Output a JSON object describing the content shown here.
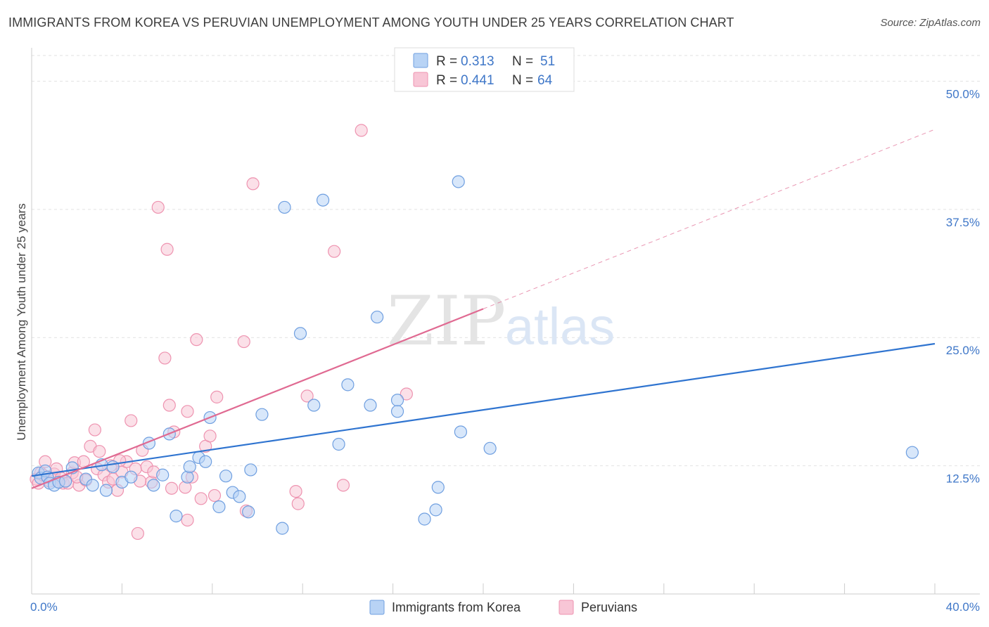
{
  "title": "IMMIGRANTS FROM KOREA VS PERUVIAN UNEMPLOYMENT AMONG YOUTH UNDER 25 YEARS CORRELATION CHART",
  "source": "Source: ZipAtlas.com",
  "watermark": {
    "zip": "ZIP",
    "atlas": "atlas"
  },
  "legend": {
    "korea": {
      "r_label": "R =",
      "r_value": "0.313",
      "n_label": "N =",
      "n_value": "51"
    },
    "peru": {
      "r_label": "R =",
      "r_value": "0.441",
      "n_label": "N =",
      "n_value": "64"
    }
  },
  "colors": {
    "korea_fill": "#b8d3f5",
    "korea_stroke": "#6f9fe0",
    "korea_line": "#2f74d0",
    "peru_fill": "#f8c6d6",
    "peru_stroke": "#ee93b0",
    "peru_line": "#e06a92",
    "tick": "#3f77c8",
    "grid": "#e2e2e2"
  },
  "chart_data": {
    "type": "scatter",
    "title": "IMMIGRANTS FROM KOREA VS PERUVIAN UNEMPLOYMENT AMONG YOUTH UNDER 25 YEARS CORRELATION CHART",
    "xlabel": "",
    "ylabel": "Unemployment Among Youth under 25 years",
    "xlim": [
      0,
      40
    ],
    "ylim": [
      0,
      52
    ],
    "x_tick_labels": [
      "0.0%",
      "40.0%"
    ],
    "y_ticks": [
      12.5,
      25.0,
      37.5,
      50.0
    ],
    "y_tick_labels": [
      "12.5%",
      "25.0%",
      "37.5%",
      "50.0%"
    ],
    "grid": true,
    "legend_position": "top-center",
    "series": [
      {
        "name": "Immigrants from Korea",
        "color_key": "korea",
        "trend": {
          "x0": 0,
          "y0": 11.5,
          "x1": 40,
          "y1": 24.4,
          "dashed_from": null
        },
        "points": [
          [
            0.3,
            11.8
          ],
          [
            0.4,
            11.3
          ],
          [
            0.6,
            12.0
          ],
          [
            0.7,
            11.4
          ],
          [
            0.8,
            10.8
          ],
          [
            1.0,
            10.6
          ],
          [
            1.2,
            10.9
          ],
          [
            1.5,
            11.0
          ],
          [
            1.8,
            12.3
          ],
          [
            2.4,
            11.2
          ],
          [
            2.7,
            10.6
          ],
          [
            3.1,
            12.6
          ],
          [
            3.3,
            10.1
          ],
          [
            3.6,
            12.4
          ],
          [
            4.0,
            10.9
          ],
          [
            4.4,
            11.4
          ],
          [
            5.2,
            14.7
          ],
          [
            5.4,
            10.6
          ],
          [
            5.8,
            11.6
          ],
          [
            6.1,
            15.6
          ],
          [
            6.4,
            7.6
          ],
          [
            6.9,
            11.4
          ],
          [
            7.0,
            12.4
          ],
          [
            7.4,
            13.3
          ],
          [
            7.7,
            12.9
          ],
          [
            7.9,
            17.2
          ],
          [
            8.3,
            8.5
          ],
          [
            8.6,
            11.5
          ],
          [
            8.9,
            9.9
          ],
          [
            9.2,
            9.5
          ],
          [
            9.6,
            8.0
          ],
          [
            9.7,
            12.1
          ],
          [
            10.2,
            17.5
          ],
          [
            11.1,
            6.4
          ],
          [
            11.2,
            37.7
          ],
          [
            11.9,
            25.4
          ],
          [
            12.5,
            18.4
          ],
          [
            12.9,
            38.4
          ],
          [
            13.6,
            14.6
          ],
          [
            14.0,
            20.4
          ],
          [
            15.0,
            18.4
          ],
          [
            15.3,
            27.0
          ],
          [
            16.2,
            18.9
          ],
          [
            16.2,
            17.8
          ],
          [
            17.4,
            7.3
          ],
          [
            17.9,
            8.2
          ],
          [
            18.0,
            10.4
          ],
          [
            18.9,
            40.2
          ],
          [
            19.0,
            15.8
          ],
          [
            20.3,
            14.2
          ],
          [
            39.0,
            13.8
          ]
        ]
      },
      {
        "name": "Peruvians",
        "color_key": "peru",
        "trend": {
          "x0": 0,
          "y0": 10.3,
          "x1": 20,
          "y1": 27.8,
          "dashed_to_x": 40,
          "dashed_to_y": 45.3
        },
        "points": [
          [
            0.2,
            11.2
          ],
          [
            0.3,
            10.8
          ],
          [
            0.4,
            11.8
          ],
          [
            0.6,
            12.9
          ],
          [
            0.8,
            11.0
          ],
          [
            1.0,
            11.7
          ],
          [
            1.1,
            12.2
          ],
          [
            1.3,
            11.3
          ],
          [
            1.4,
            10.8
          ],
          [
            1.6,
            10.8
          ],
          [
            1.8,
            11.8
          ],
          [
            1.9,
            12.8
          ],
          [
            2.1,
            10.6
          ],
          [
            2.3,
            12.9
          ],
          [
            2.4,
            11.1
          ],
          [
            2.6,
            14.4
          ],
          [
            2.8,
            16.0
          ],
          [
            2.9,
            12.2
          ],
          [
            3.0,
            13.9
          ],
          [
            3.2,
            11.6
          ],
          [
            3.4,
            10.9
          ],
          [
            3.5,
            12.5
          ],
          [
            3.6,
            11.2
          ],
          [
            3.8,
            10.1
          ],
          [
            4.0,
            11.9
          ],
          [
            4.2,
            12.9
          ],
          [
            4.4,
            16.9
          ],
          [
            4.6,
            12.2
          ],
          [
            4.7,
            5.9
          ],
          [
            4.9,
            14.0
          ],
          [
            5.1,
            12.4
          ],
          [
            5.3,
            10.9
          ],
          [
            5.4,
            11.9
          ],
          [
            5.6,
            37.7
          ],
          [
            5.9,
            23.0
          ],
          [
            6.0,
            33.6
          ],
          [
            6.1,
            18.4
          ],
          [
            6.2,
            10.3
          ],
          [
            6.3,
            15.8
          ],
          [
            6.8,
            10.4
          ],
          [
            6.9,
            7.2
          ],
          [
            6.9,
            17.8
          ],
          [
            7.1,
            11.4
          ],
          [
            7.3,
            24.8
          ],
          [
            7.5,
            9.3
          ],
          [
            7.7,
            14.4
          ],
          [
            7.9,
            15.4
          ],
          [
            8.1,
            9.6
          ],
          [
            8.2,
            19.2
          ],
          [
            9.4,
            24.6
          ],
          [
            9.5,
            8.1
          ],
          [
            9.8,
            40.0
          ],
          [
            11.7,
            10.0
          ],
          [
            11.8,
            8.8
          ],
          [
            12.2,
            19.3
          ],
          [
            13.4,
            33.4
          ],
          [
            13.8,
            10.6
          ],
          [
            14.6,
            45.2
          ],
          [
            16.6,
            19.5
          ],
          [
            1.2,
            10.9
          ],
          [
            2.0,
            11.4
          ],
          [
            4.8,
            11.0
          ],
          [
            0.5,
            11.6
          ],
          [
            3.9,
            13.0
          ]
        ]
      }
    ]
  }
}
